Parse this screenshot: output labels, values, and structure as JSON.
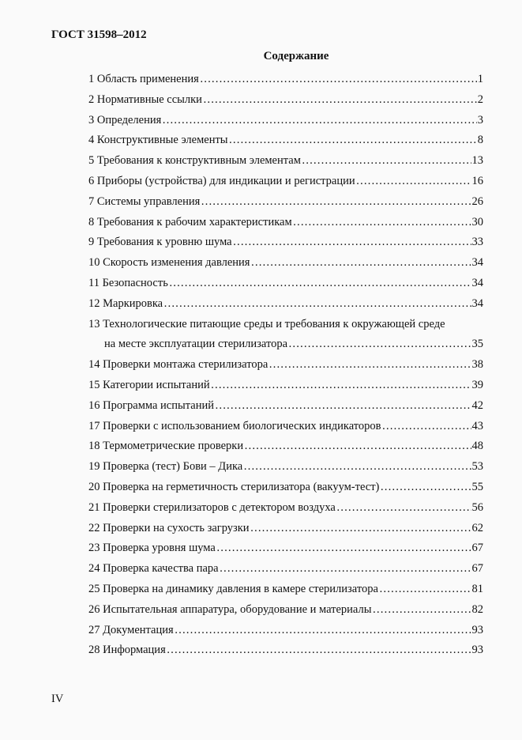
{
  "header": "ГОСТ 31598–2012",
  "title": "Содержание",
  "entries": [
    {
      "label": "1 Область применения",
      "page": "1"
    },
    {
      "label": "2 Нормативные ссылки",
      "page": "2"
    },
    {
      "label": "3 Определения",
      "page": "3"
    },
    {
      "label": "4 Конструктивные элементы",
      "page": "8"
    },
    {
      "label": "5 Требования к конструктивным элементам",
      "page": "13"
    },
    {
      "label": "6 Приборы (устройства) для индикации и регистрации",
      "page": "16"
    },
    {
      "label": "7 Системы управления",
      "page": "26"
    },
    {
      "label": "8 Требования к рабочим характеристикам",
      "page": "30"
    },
    {
      "label": "9 Требования к уровню шума",
      "page": "33"
    },
    {
      "label": "10 Скорость изменения давления",
      "page": "34"
    },
    {
      "label": "11 Безопасность",
      "page": "34"
    },
    {
      "label": "12 Маркировка",
      "page": "34"
    },
    {
      "label": "13 Технологические питающие среды и требования к окружающей среде",
      "label2": "на месте эксплуатации стерилизатора",
      "page": "35"
    },
    {
      "label": "14 Проверки монтажа стерилизатора",
      "page": "38"
    },
    {
      "label": "15 Категории испытаний",
      "page": "39"
    },
    {
      "label": "16 Программа испытаний",
      "page": "42"
    },
    {
      "label": "17 Проверки с использованием биологических индикаторов",
      "page": "43"
    },
    {
      "label": "18 Термометрические проверки",
      "page": "48"
    },
    {
      "label": "19 Проверка (тест) Бови – Дика",
      "page": "53"
    },
    {
      "label": "20 Проверка на герметичность стерилизатора (вакуум-тест)",
      "page": "55"
    },
    {
      "label": "21 Проверки стерилизаторов с детектором воздуха",
      "page": "56"
    },
    {
      "label": "22 Проверки на сухость загрузки",
      "page": "62"
    },
    {
      "label": "23 Проверка уровня шума",
      "page": "67"
    },
    {
      "label": "24 Проверка качества пара",
      "page": "67"
    },
    {
      "label": "25 Проверка на динамику давления в камере стерилизатора",
      "page": "81"
    },
    {
      "label": "26 Испытательная аппаратура, оборудование и материалы",
      "page": "82"
    },
    {
      "label": "27 Документация",
      "page": "93"
    },
    {
      "label": "28 Информация",
      "page": "93"
    }
  ],
  "footer_page": "IV"
}
